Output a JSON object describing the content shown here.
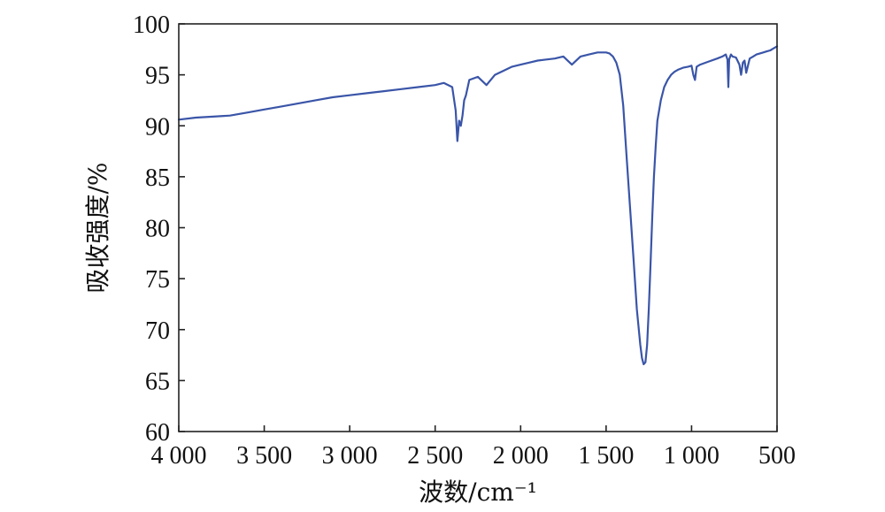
{
  "chart_data": {
    "type": "line",
    "xlabel": "波数/cm⁻¹",
    "ylabel": "吸收强度/%",
    "xlim": [
      4000,
      500
    ],
    "ylim": [
      60,
      100
    ],
    "x_reversed": true,
    "x_ticks": [
      4000,
      3500,
      3000,
      2500,
      2000,
      1500,
      1000,
      500
    ],
    "x_tick_labels": [
      "4 000",
      "3 500",
      "3 000",
      "2 500",
      "2 000",
      "1 500",
      "1 000",
      "500"
    ],
    "y_ticks": [
      60,
      65,
      70,
      75,
      80,
      85,
      90,
      95,
      100
    ],
    "y_tick_labels": [
      "60",
      "65",
      "70",
      "75",
      "80",
      "85",
      "90",
      "95",
      "100"
    ],
    "grid": false,
    "colors": {
      "line": "#3a55a8"
    },
    "series": [
      {
        "x": [
          4000,
          3900,
          3800,
          3700,
          3600,
          3500,
          3400,
          3300,
          3200,
          3100,
          3000,
          2900,
          2800,
          2700,
          2600,
          2500,
          2450,
          2400,
          2380,
          2370,
          2360,
          2350,
          2340,
          2330,
          2320,
          2300,
          2250,
          2200,
          2150,
          2100,
          2050,
          2000,
          1950,
          1900,
          1850,
          1800,
          1750,
          1700,
          1650,
          1600,
          1550,
          1500,
          1480,
          1460,
          1440,
          1420,
          1400,
          1380,
          1360,
          1340,
          1320,
          1300,
          1290,
          1280,
          1270,
          1260,
          1250,
          1240,
          1230,
          1220,
          1210,
          1200,
          1180,
          1160,
          1140,
          1120,
          1100,
          1080,
          1050,
          1020,
          1000,
          990,
          980,
          970,
          950,
          900,
          850,
          820,
          800,
          790,
          785,
          780,
          770,
          760,
          740,
          720,
          710,
          700,
          690,
          680,
          660,
          640,
          620,
          600,
          580,
          560,
          540,
          520,
          500
        ],
        "y": [
          90.6,
          90.8,
          90.9,
          91.0,
          91.3,
          91.6,
          91.9,
          92.2,
          92.5,
          92.8,
          93.0,
          93.2,
          93.4,
          93.6,
          93.8,
          94.0,
          94.2,
          93.8,
          91.5,
          88.5,
          90.5,
          90.0,
          91.0,
          92.5,
          93.0,
          94.5,
          94.8,
          94.0,
          95.0,
          95.4,
          95.8,
          96.0,
          96.2,
          96.4,
          96.5,
          96.6,
          96.8,
          96.0,
          96.8,
          97.0,
          97.2,
          97.2,
          97.1,
          96.8,
          96.2,
          95.0,
          92.0,
          87.0,
          82.0,
          77.0,
          72.0,
          68.5,
          67.2,
          66.6,
          66.8,
          68.5,
          72.0,
          76.5,
          81.0,
          85.0,
          88.0,
          90.5,
          92.5,
          93.8,
          94.5,
          95.0,
          95.3,
          95.5,
          95.7,
          95.8,
          95.9,
          95.0,
          94.5,
          95.8,
          96.0,
          96.3,
          96.6,
          96.8,
          97.0,
          96.5,
          93.8,
          96.5,
          97.0,
          96.8,
          96.7,
          96.0,
          95.0,
          96.2,
          96.4,
          95.2,
          96.6,
          96.8,
          97.0,
          97.1,
          97.2,
          97.3,
          97.4,
          97.6,
          97.8
        ]
      }
    ]
  }
}
